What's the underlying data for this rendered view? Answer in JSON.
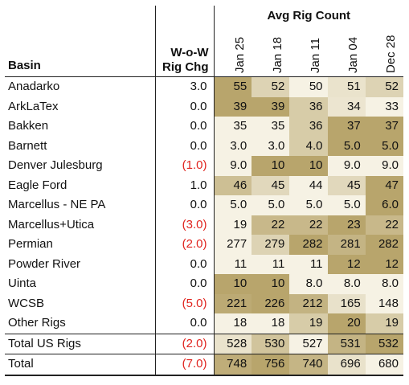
{
  "chart_data": {
    "type": "table",
    "title": "Avg Rig Count",
    "row_header": "Basin",
    "change_header": [
      "W-o-W",
      "Rig Chg"
    ],
    "columns": [
      "Jan 25",
      "Jan 18",
      "Jan 11",
      "Jan 04",
      "Dec 28"
    ],
    "rows": [
      {
        "basin": "Anadarko",
        "wow": "3.0",
        "neg": false,
        "values": [
          "55",
          "52",
          "50",
          "51",
          "52"
        ],
        "nums": [
          55,
          52,
          50,
          51,
          52
        ]
      },
      {
        "basin": "ArkLaTex",
        "wow": "0.0",
        "neg": false,
        "values": [
          "39",
          "39",
          "36",
          "34",
          "33"
        ],
        "nums": [
          39,
          39,
          36,
          34,
          33
        ]
      },
      {
        "basin": "Bakken",
        "wow": "0.0",
        "neg": false,
        "values": [
          "35",
          "35",
          "36",
          "37",
          "37"
        ],
        "nums": [
          35,
          35,
          36,
          37,
          37
        ]
      },
      {
        "basin": "Barnett",
        "wow": "0.0",
        "neg": false,
        "values": [
          "3.0",
          "3.0",
          "4.0",
          "5.0",
          "5.0"
        ],
        "nums": [
          3,
          3,
          4,
          5,
          5
        ]
      },
      {
        "basin": "Denver Julesburg",
        "wow": "(1.0)",
        "neg": true,
        "values": [
          "9.0",
          "10",
          "10",
          "9.0",
          "9.0"
        ],
        "nums": [
          9,
          10,
          10,
          9,
          9
        ]
      },
      {
        "basin": "Eagle Ford",
        "wow": "1.0",
        "neg": false,
        "values": [
          "46",
          "45",
          "44",
          "45",
          "47"
        ],
        "nums": [
          46,
          45,
          44,
          45,
          47
        ]
      },
      {
        "basin": "Marcellus - NE PA",
        "wow": "0.0",
        "neg": false,
        "values": [
          "5.0",
          "5.0",
          "5.0",
          "5.0",
          "6.0"
        ],
        "nums": [
          5,
          5,
          5,
          5,
          6
        ]
      },
      {
        "basin": "Marcellus+Utica",
        "wow": "(3.0)",
        "neg": true,
        "values": [
          "19",
          "22",
          "22",
          "23",
          "22"
        ],
        "nums": [
          19,
          22,
          22,
          23,
          22
        ]
      },
      {
        "basin": "Permian",
        "wow": "(2.0)",
        "neg": true,
        "values": [
          "277",
          "279",
          "282",
          "281",
          "282"
        ],
        "nums": [
          277,
          279,
          282,
          281,
          282
        ]
      },
      {
        "basin": "Powder River",
        "wow": "0.0",
        "neg": false,
        "values": [
          "11",
          "11",
          "11",
          "12",
          "12"
        ],
        "nums": [
          11,
          11,
          11,
          12,
          12
        ]
      },
      {
        "basin": "Uinta",
        "wow": "0.0",
        "neg": false,
        "values": [
          "10",
          "10",
          "8.0",
          "8.0",
          "8.0"
        ],
        "nums": [
          10,
          10,
          8,
          8,
          8
        ]
      },
      {
        "basin": "WCSB",
        "wow": "(5.0)",
        "neg": true,
        "values": [
          "221",
          "226",
          "212",
          "165",
          "148"
        ],
        "nums": [
          221,
          226,
          212,
          165,
          148
        ]
      },
      {
        "basin": "Other Rigs",
        "wow": "0.0",
        "neg": false,
        "values": [
          "18",
          "18",
          "19",
          "20",
          "19"
        ],
        "nums": [
          18,
          18,
          19,
          20,
          19
        ]
      }
    ],
    "totals": [
      {
        "basin": "Total US Rigs",
        "wow": "(2.0)",
        "neg": true,
        "values": [
          "528",
          "530",
          "527",
          "531",
          "532"
        ],
        "nums": [
          528,
          530,
          527,
          531,
          532
        ]
      },
      {
        "basin": "Total",
        "wow": "(7.0)",
        "neg": true,
        "values": [
          "748",
          "756",
          "740",
          "696",
          "680"
        ],
        "nums": [
          748,
          756,
          740,
          696,
          680
        ]
      }
    ],
    "colors": {
      "negative": "#e0241f",
      "heat_low": "#f6f2e4",
      "heat_high": "#b8a56c"
    }
  }
}
